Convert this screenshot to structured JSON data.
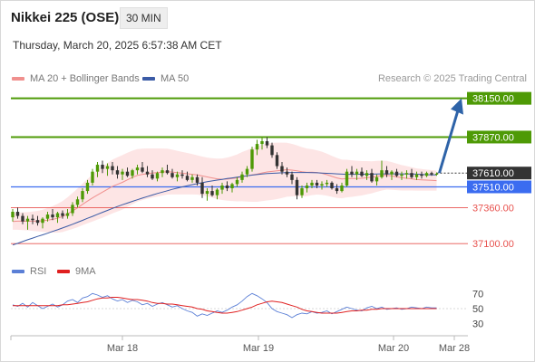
{
  "header": {
    "title": "Nikkei 225 (OSE)",
    "timeframe": "30 MIN",
    "datetime": "Thursday, March 20, 2025 6:57:38 AM CET",
    "copyright": "Research © 2025 Trading Central"
  },
  "legend": {
    "ma20": "MA 20 + Bollinger Bands",
    "ma50": "MA 50",
    "rsi": "RSI",
    "ma9": "9MA"
  },
  "colors": {
    "target": "#4e9a06",
    "pivot": "#3b6cf0",
    "support": "#e8534f",
    "ma20": "#f0908e",
    "ma50": "#3b5ba6",
    "band_fill": "#fde0e0",
    "up_candle": "#4e9a06",
    "down_candle": "#333333",
    "arrow": "#2e63a8",
    "rsi": "#5b7fd6",
    "rsi_ma": "#e02020",
    "current_price_bg": "#333333"
  },
  "chart_data": {
    "type": "candlestick",
    "title": "Nikkei 225 (OSE)",
    "timeframe": "30 MIN",
    "y_range": [
      36990,
      38200
    ],
    "levels": [
      {
        "value": 38150,
        "label": "38150.00",
        "kind": "target"
      },
      {
        "value": 37870,
        "label": "37870.00",
        "kind": "target"
      },
      {
        "value": 37610,
        "label": "37610.00",
        "kind": "current"
      },
      {
        "value": 37510,
        "label": "37510.00",
        "kind": "pivot"
      },
      {
        "value": 37360,
        "label": "37360.00",
        "kind": "support"
      },
      {
        "value": 37100,
        "label": "37100.00",
        "kind": "support"
      }
    ],
    "x_ticks": [
      "Mar 18",
      "Mar 19",
      "Mar 20",
      "Mar 28"
    ],
    "ohlc": [
      [
        37290,
        37350,
        37260,
        37330
      ],
      [
        37330,
        37360,
        37280,
        37300
      ],
      [
        37300,
        37320,
        37240,
        37260
      ],
      [
        37260,
        37300,
        37200,
        37280
      ],
      [
        37280,
        37310,
        37240,
        37270
      ],
      [
        37270,
        37300,
        37230,
        37250
      ],
      [
        37250,
        37290,
        37210,
        37280
      ],
      [
        37280,
        37330,
        37260,
        37310
      ],
      [
        37310,
        37350,
        37270,
        37290
      ],
      [
        37290,
        37330,
        37250,
        37320
      ],
      [
        37320,
        37340,
        37280,
        37300
      ],
      [
        37300,
        37350,
        37280,
        37320
      ],
      [
        37320,
        37400,
        37300,
        37380
      ],
      [
        37380,
        37440,
        37360,
        37420
      ],
      [
        37420,
        37500,
        37400,
        37480
      ],
      [
        37480,
        37560,
        37460,
        37540
      ],
      [
        37540,
        37640,
        37520,
        37620
      ],
      [
        37620,
        37690,
        37580,
        37670
      ],
      [
        37670,
        37700,
        37610,
        37640
      ],
      [
        37640,
        37680,
        37590,
        37660
      ],
      [
        37660,
        37690,
        37600,
        37630
      ],
      [
        37630,
        37660,
        37570,
        37600
      ],
      [
        37600,
        37640,
        37560,
        37620
      ],
      [
        37620,
        37650,
        37580,
        37590
      ],
      [
        37590,
        37640,
        37570,
        37630
      ],
      [
        37630,
        37670,
        37600,
        37650
      ],
      [
        37650,
        37690,
        37610,
        37620
      ],
      [
        37620,
        37660,
        37580,
        37600
      ],
      [
        37600,
        37630,
        37560,
        37570
      ],
      [
        37570,
        37620,
        37550,
        37610
      ],
      [
        37610,
        37650,
        37580,
        37630
      ],
      [
        37630,
        37670,
        37600,
        37610
      ],
      [
        37610,
        37640,
        37570,
        37580
      ],
      [
        37580,
        37620,
        37550,
        37600
      ],
      [
        37600,
        37630,
        37570,
        37590
      ],
      [
        37590,
        37620,
        37550,
        37560
      ],
      [
        37560,
        37600,
        37540,
        37580
      ],
      [
        37580,
        37600,
        37520,
        37540
      ],
      [
        37540,
        37580,
        37430,
        37460
      ],
      [
        37460,
        37500,
        37410,
        37480
      ],
      [
        37480,
        37520,
        37440,
        37450
      ],
      [
        37450,
        37500,
        37420,
        37490
      ],
      [
        37490,
        37540,
        37460,
        37520
      ],
      [
        37520,
        37550,
        37480,
        37500
      ],
      [
        37500,
        37540,
        37470,
        37530
      ],
      [
        37530,
        37580,
        37510,
        37560
      ],
      [
        37560,
        37620,
        37540,
        37600
      ],
      [
        37600,
        37660,
        37580,
        37640
      ],
      [
        37640,
        37800,
        37620,
        37780
      ],
      [
        37780,
        37850,
        37740,
        37820
      ],
      [
        37820,
        37870,
        37780,
        37840
      ],
      [
        37840,
        37870,
        37790,
        37810
      ],
      [
        37810,
        37830,
        37720,
        37740
      ],
      [
        37740,
        37760,
        37640,
        37660
      ],
      [
        37660,
        37690,
        37600,
        37620
      ],
      [
        37620,
        37650,
        37580,
        37600
      ],
      [
        37600,
        37620,
        37530,
        37560
      ],
      [
        37560,
        37580,
        37420,
        37450
      ],
      [
        37450,
        37520,
        37430,
        37500
      ],
      [
        37500,
        37540,
        37470,
        37520
      ],
      [
        37520,
        37560,
        37500,
        37540
      ],
      [
        37540,
        37560,
        37500,
        37520
      ],
      [
        37520,
        37550,
        37490,
        37530
      ],
      [
        37530,
        37560,
        37510,
        37540
      ],
      [
        37540,
        37550,
        37490,
        37500
      ],
      [
        37500,
        37530,
        37460,
        37480
      ],
      [
        37480,
        37540,
        37470,
        37520
      ],
      [
        37520,
        37640,
        37510,
        37620
      ],
      [
        37620,
        37660,
        37580,
        37600
      ],
      [
        37600,
        37640,
        37560,
        37620
      ],
      [
        37620,
        37650,
        37580,
        37590
      ],
      [
        37590,
        37630,
        37560,
        37610
      ],
      [
        37610,
        37640,
        37540,
        37550
      ],
      [
        37550,
        37600,
        37520,
        37580
      ],
      [
        37580,
        37700,
        37570,
        37630
      ],
      [
        37630,
        37660,
        37580,
        37600
      ],
      [
        37600,
        37630,
        37560,
        37620
      ],
      [
        37620,
        37640,
        37580,
        37590
      ],
      [
        37590,
        37620,
        37560,
        37600
      ],
      [
        37600,
        37630,
        37570,
        37610
      ],
      [
        37610,
        37640,
        37570,
        37580
      ],
      [
        37580,
        37620,
        37560,
        37600
      ],
      [
        37600,
        37620,
        37570,
        37590
      ],
      [
        37590,
        37620,
        37580,
        37610
      ],
      [
        37610,
        37620,
        37590,
        37600
      ],
      [
        37600,
        37615,
        37590,
        37605
      ]
    ],
    "ma20": [
      37260,
      37262,
      37262,
      37262,
      37262,
      37263,
      37265,
      37269,
      37275,
      37283,
      37296,
      37315,
      37336,
      37358,
      37384,
      37407,
      37430,
      37452,
      37472,
      37492,
      37513,
      37528,
      37543,
      37561,
      37578,
      37593,
      37600,
      37606,
      37610,
      37614,
      37617,
      37620,
      37617,
      37613,
      37609,
      37605,
      37601,
      37596,
      37589,
      37582,
      37575,
      37568,
      37565,
      37566,
      37570,
      37575,
      37584,
      37590,
      37596,
      37602,
      37611,
      37618,
      37622,
      37626,
      37630,
      37634,
      37631,
      37626,
      37619,
      37615,
      37616,
      37614,
      37608,
      37598,
      37586,
      37575,
      37567,
      37570,
      37570,
      37571,
      37572,
      37576,
      37579,
      37586,
      37592,
      37594,
      37589,
      37582,
      37576,
      37572,
      37568,
      37563,
      37561,
      37559,
      37557,
      37555
    ],
    "ma50": [
      37090,
      37102,
      37115,
      37128,
      37140,
      37152,
      37163,
      37175,
      37188,
      37200,
      37213,
      37226,
      37240,
      37254,
      37268,
      37283,
      37297,
      37312,
      37326,
      37340,
      37354,
      37368,
      37381,
      37393,
      37405,
      37417,
      37429,
      37440,
      37451,
      37462,
      37472,
      37482,
      37492,
      37501,
      37510,
      37518,
      37526,
      37533,
      37540,
      37547,
      37553,
      37559,
      37564,
      37570,
      37575,
      37580,
      37585,
      37590,
      37595,
      37599,
      37603,
      37606,
      37608,
      37610,
      37612,
      37613,
      37614,
      37614,
      37614,
      37614,
      37613,
      37612,
      37610,
      37608,
      37606,
      37604,
      37602,
      37601,
      37601,
      37601,
      37602,
      37601,
      37602,
      37603,
      37604,
      37604,
      37604,
      37604,
      37604,
      37603,
      37603,
      37602,
      37600,
      37598,
      37597,
      37597
    ],
    "bb_width": [
      60,
      62,
      64,
      66,
      70,
      74,
      80,
      88,
      96,
      104,
      112,
      120,
      130,
      140,
      150,
      160,
      170,
      178,
      185,
      190,
      194,
      196,
      197,
      196,
      194,
      190,
      186,
      182,
      178,
      174,
      170,
      166,
      162,
      158,
      154,
      150,
      146,
      142,
      140,
      140,
      142,
      146,
      150,
      156,
      162,
      170,
      178,
      186,
      194,
      200,
      204,
      206,
      206,
      204,
      200,
      195,
      190,
      184,
      178,
      172,
      166,
      160,
      156,
      152,
      148,
      144,
      140,
      136,
      132,
      128,
      124,
      120,
      116,
      112,
      108,
      104,
      100,
      96,
      92,
      88,
      84,
      80,
      78,
      76,
      74,
      72
    ],
    "rsi": {
      "ticks": [
        70,
        50,
        30
      ],
      "rsi_values": [
        55,
        53,
        57,
        52,
        58,
        54,
        50,
        53,
        56,
        52,
        55,
        60,
        62,
        58,
        64,
        66,
        70,
        68,
        65,
        67,
        63,
        60,
        62,
        58,
        61,
        59,
        55,
        57,
        53,
        56,
        58,
        55,
        52,
        54,
        50,
        47,
        45,
        40,
        43,
        41,
        44,
        47,
        45,
        48,
        52,
        55,
        60,
        66,
        70,
        67,
        63,
        58,
        50,
        46,
        44,
        42,
        38,
        42,
        44,
        43,
        46,
        44,
        45,
        47,
        43,
        46,
        49,
        52,
        50,
        48,
        47,
        51,
        53,
        50,
        52,
        49,
        50,
        51,
        49,
        50,
        52,
        51,
        50,
        52,
        51,
        51
      ],
      "ma9_values": [
        54,
        54,
        54,
        54,
        54,
        54,
        54,
        54,
        54,
        54,
        55,
        55,
        56,
        57,
        58,
        59,
        61,
        63,
        64,
        64,
        65,
        65,
        64,
        63,
        62,
        62,
        61,
        60,
        58,
        57,
        57,
        56,
        56,
        55,
        54,
        53,
        52,
        50,
        49,
        47,
        46,
        45,
        44,
        44,
        45,
        46,
        48,
        50,
        52,
        55,
        57,
        59,
        60,
        59,
        58,
        56,
        54,
        52,
        49,
        47,
        46,
        45,
        44,
        44,
        44,
        44,
        45,
        46,
        47,
        47,
        48,
        48,
        49,
        49,
        50,
        50,
        50,
        50,
        50,
        50,
        50,
        50,
        50,
        50,
        50,
        50
      ],
      "y_range": [
        20,
        80
      ]
    }
  }
}
